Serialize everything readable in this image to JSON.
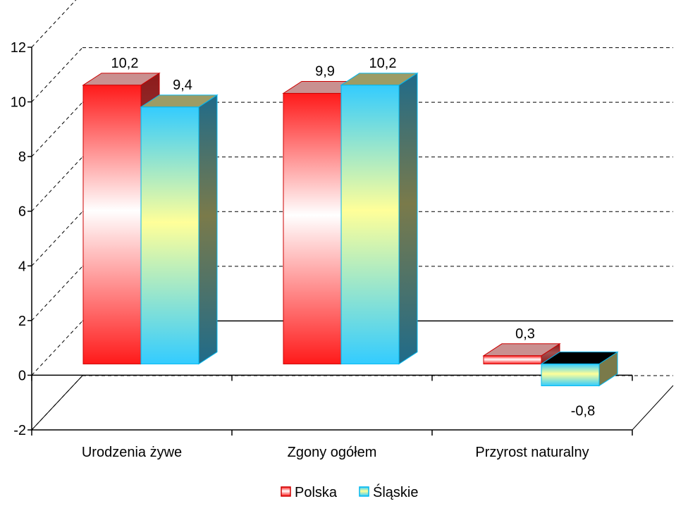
{
  "chart_data": {
    "type": "bar",
    "title": "",
    "xlabel": "",
    "ylabel": "",
    "ylim": [
      -2,
      12
    ],
    "yticks": [
      -2,
      0,
      2,
      4,
      6,
      8,
      10,
      12
    ],
    "grid": true,
    "three_d": true,
    "legend_position": "bottom",
    "categories": [
      "Urodzenia żywe",
      "Zgony ogółem",
      "Przyrost naturalny"
    ],
    "series": [
      {
        "name": "Polska",
        "values": [
          10.2,
          9.9,
          0.3
        ],
        "labels": [
          "10,2",
          "9,9",
          "0,3"
        ],
        "color": "#ff0000",
        "edge_color": "#cc0000"
      },
      {
        "name": "Śląskie",
        "values": [
          9.4,
          10.2,
          -0.8
        ],
        "labels": [
          "9,4",
          "10,2",
          "-0,8"
        ],
        "color": "#33ccff",
        "edge_color": "#00b7ef"
      }
    ]
  }
}
